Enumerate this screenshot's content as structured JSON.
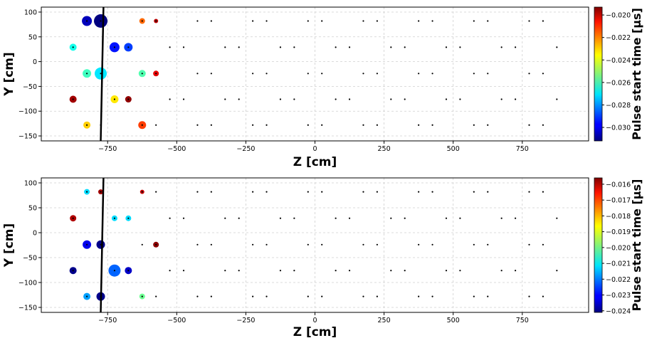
{
  "chart_data": [
    {
      "type": "scatter",
      "xlabel": "Z [cm]",
      "ylabel": "Y [cm]",
      "colorbar_label": "Pulse start time [μs]",
      "xlim": [
        -990,
        990
      ],
      "ylim": [
        -160,
        110
      ],
      "xticks": [
        -750,
        -500,
        -250,
        0,
        250,
        500,
        750
      ],
      "xtick_labels": [
        "−750",
        "−500",
        "−250",
        "0",
        "250",
        "500",
        "750"
      ],
      "yticks": [
        100,
        50,
        0,
        -50,
        -100,
        -150
      ],
      "ytick_labels": [
        "100",
        "50",
        "0",
        "−50",
        "−100",
        "−150"
      ],
      "colorbar_range": [
        -0.0312,
        -0.0193
      ],
      "colorbar_ticks": [
        -0.02,
        -0.022,
        -0.024,
        -0.026,
        -0.028,
        -0.03
      ],
      "colorbar_tick_labels": [
        "−0.020",
        "−0.022",
        "−0.024",
        "−0.026",
        "−0.028",
        "−0.030"
      ],
      "colormap": "jet",
      "grid": true,
      "track": [
        [
          -765,
          110
        ],
        [
          -775,
          -160
        ]
      ],
      "points": [
        {
          "z": -825,
          "y": 82,
          "t": -0.0305,
          "size": 7
        },
        {
          "z": -775,
          "y": 82,
          "t": -0.0312,
          "size": 9.5
        },
        {
          "z": -625,
          "y": 82,
          "t": -0.022,
          "size": 4
        },
        {
          "z": -575,
          "y": 82,
          "t": -0.02,
          "size": 3
        },
        {
          "z": -875,
          "y": 29,
          "t": -0.0265,
          "size": 5
        },
        {
          "z": -725,
          "y": 29,
          "t": -0.0295,
          "size": 7
        },
        {
          "z": -675,
          "y": 29,
          "t": -0.029,
          "size": 6
        },
        {
          "z": -825,
          "y": -24,
          "t": -0.026,
          "size": 6
        },
        {
          "z": -775,
          "y": -24,
          "t": -0.027,
          "size": 8.5
        },
        {
          "z": -625,
          "y": -24,
          "t": -0.0258,
          "size": 5
        },
        {
          "z": -575,
          "y": -24,
          "t": -0.0205,
          "size": 4
        },
        {
          "z": -875,
          "y": -76,
          "t": -0.0197,
          "size": 5
        },
        {
          "z": -725,
          "y": -76,
          "t": -0.0235,
          "size": 5.5
        },
        {
          "z": -675,
          "y": -76,
          "t": -0.0195,
          "size": 4.5
        },
        {
          "z": -825,
          "y": -128,
          "t": -0.0232,
          "size": 5
        },
        {
          "z": -625,
          "y": -128,
          "t": -0.0215,
          "size": 5.5
        }
      ]
    },
    {
      "type": "scatter",
      "xlabel": "Z [cm]",
      "ylabel": "Y [cm]",
      "colorbar_label": "Pulse start time [μs]",
      "xlim": [
        -990,
        990
      ],
      "ylim": [
        -160,
        110
      ],
      "xticks": [
        -750,
        -500,
        -250,
        0,
        250,
        500,
        750
      ],
      "xtick_labels": [
        "−750",
        "−500",
        "−250",
        "0",
        "250",
        "500",
        "750"
      ],
      "yticks": [
        100,
        50,
        0,
        -50,
        -100,
        -150
      ],
      "ytick_labels": [
        "100",
        "50",
        "0",
        "−50",
        "−100",
        "−150"
      ],
      "colorbar_range": [
        -0.0241,
        -0.0156
      ],
      "colorbar_ticks": [
        -0.016,
        -0.017,
        -0.018,
        -0.019,
        -0.02,
        -0.021,
        -0.022,
        -0.023,
        -0.024
      ],
      "colorbar_tick_labels": [
        "−0.016",
        "−0.017",
        "−0.018",
        "−0.019",
        "−0.020",
        "−0.021",
        "−0.022",
        "−0.023",
        "−0.024"
      ],
      "colormap": "jet",
      "grid": true,
      "track": [
        [
          -765,
          110
        ],
        [
          -775,
          -160
        ]
      ],
      "points": [
        {
          "z": -825,
          "y": 82,
          "t": -0.0212,
          "size": 4
        },
        {
          "z": -775,
          "y": 82,
          "t": -0.0159,
          "size": 3.5
        },
        {
          "z": -625,
          "y": 82,
          "t": -0.0162,
          "size": 3
        },
        {
          "z": -875,
          "y": 29,
          "t": -0.016,
          "size": 4.5
        },
        {
          "z": -725,
          "y": 29,
          "t": -0.0212,
          "size": 4
        },
        {
          "z": -675,
          "y": 29,
          "t": -0.0212,
          "size": 4
        },
        {
          "z": -825,
          "y": -24,
          "t": -0.0232,
          "size": 6
        },
        {
          "z": -775,
          "y": -24,
          "t": -0.024,
          "size": 6
        },
        {
          "z": -575,
          "y": -24,
          "t": -0.0157,
          "size": 4
        },
        {
          "z": -875,
          "y": -76,
          "t": -0.024,
          "size": 5
        },
        {
          "z": -725,
          "y": -76,
          "t": -0.0222,
          "size": 8.5
        },
        {
          "z": -675,
          "y": -76,
          "t": -0.0235,
          "size": 5
        },
        {
          "z": -825,
          "y": -128,
          "t": -0.0217,
          "size": 5
        },
        {
          "z": -775,
          "y": -128,
          "t": -0.024,
          "size": 6
        },
        {
          "z": -625,
          "y": -128,
          "t": -0.02,
          "size": 4
        }
      ]
    }
  ],
  "detector_grid": {
    "row_a": {
      "y_values": [
        82,
        -24,
        -128
      ],
      "z_values": [
        -825,
        -775,
        -625,
        -575,
        -425,
        -375,
        -225,
        -175,
        -25,
        25,
        175,
        225,
        375,
        425,
        575,
        625,
        775,
        825
      ]
    },
    "row_b": {
      "y_values": [
        29,
        -76
      ],
      "z_values": [
        -875,
        -725,
        -675,
        -525,
        -475,
        -325,
        -275,
        -125,
        -75,
        75,
        125,
        275,
        325,
        475,
        525,
        675,
        725,
        875
      ]
    }
  }
}
